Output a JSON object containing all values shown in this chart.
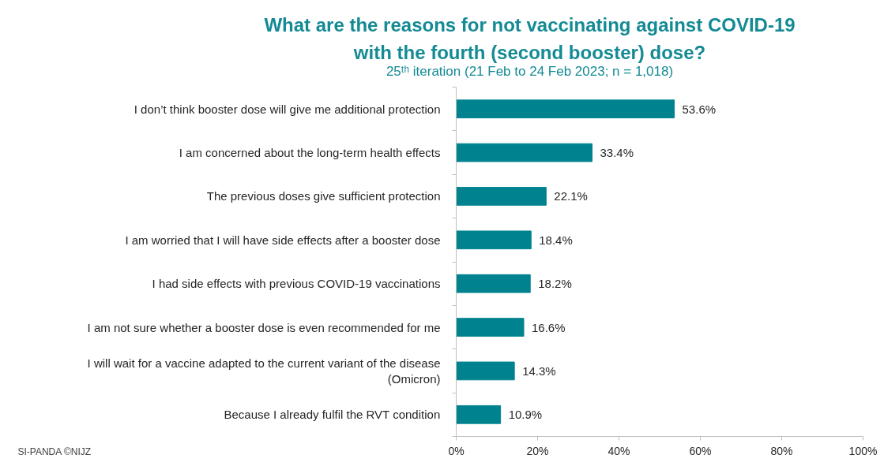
{
  "chart_data": {
    "type": "bar",
    "orientation": "horizontal",
    "title": "What are the reasons for not vaccinating against COVID-19 with the fourth (second booster) dose?",
    "subtitle": "25ᵗʰ iteration (21 Feb to 24 Feb 2023; n = 1,018)",
    "categories": [
      "I don’t think booster dose will give me additional protection",
      "I am concerned about the long-term health effects",
      "The previous doses give sufficient protection",
      "I am worried that I will have side effects after a booster dose",
      "I had side effects with previous COVID-19 vaccinations",
      "I am not sure whether a booster dose is even recommended for me",
      "I will wait for a vaccine adapted to the current variant of the disease (Omicron)",
      "Because I already fulfil the RVT condition"
    ],
    "values": [
      53.6,
      33.4,
      22.1,
      18.4,
      18.2,
      16.6,
      14.3,
      10.9
    ],
    "value_labels": [
      "53.6%",
      "33.4%",
      "22.1%",
      "18.4%",
      "18.2%",
      "16.6%",
      "14.3%",
      "10.9%"
    ],
    "color": "#00838f",
    "xlim": [
      0,
      100
    ],
    "xticks": [
      {
        "value": 0,
        "label": "0%"
      },
      {
        "value": 20,
        "label": "20%"
      },
      {
        "value": 40,
        "label": "40%"
      },
      {
        "value": 60,
        "label": "60%"
      },
      {
        "value": 80,
        "label": "80%"
      },
      {
        "value": 100,
        "label": "100%"
      }
    ],
    "grid": false,
    "annotations": [
      "SI-PANDA ©NIJZ"
    ]
  }
}
